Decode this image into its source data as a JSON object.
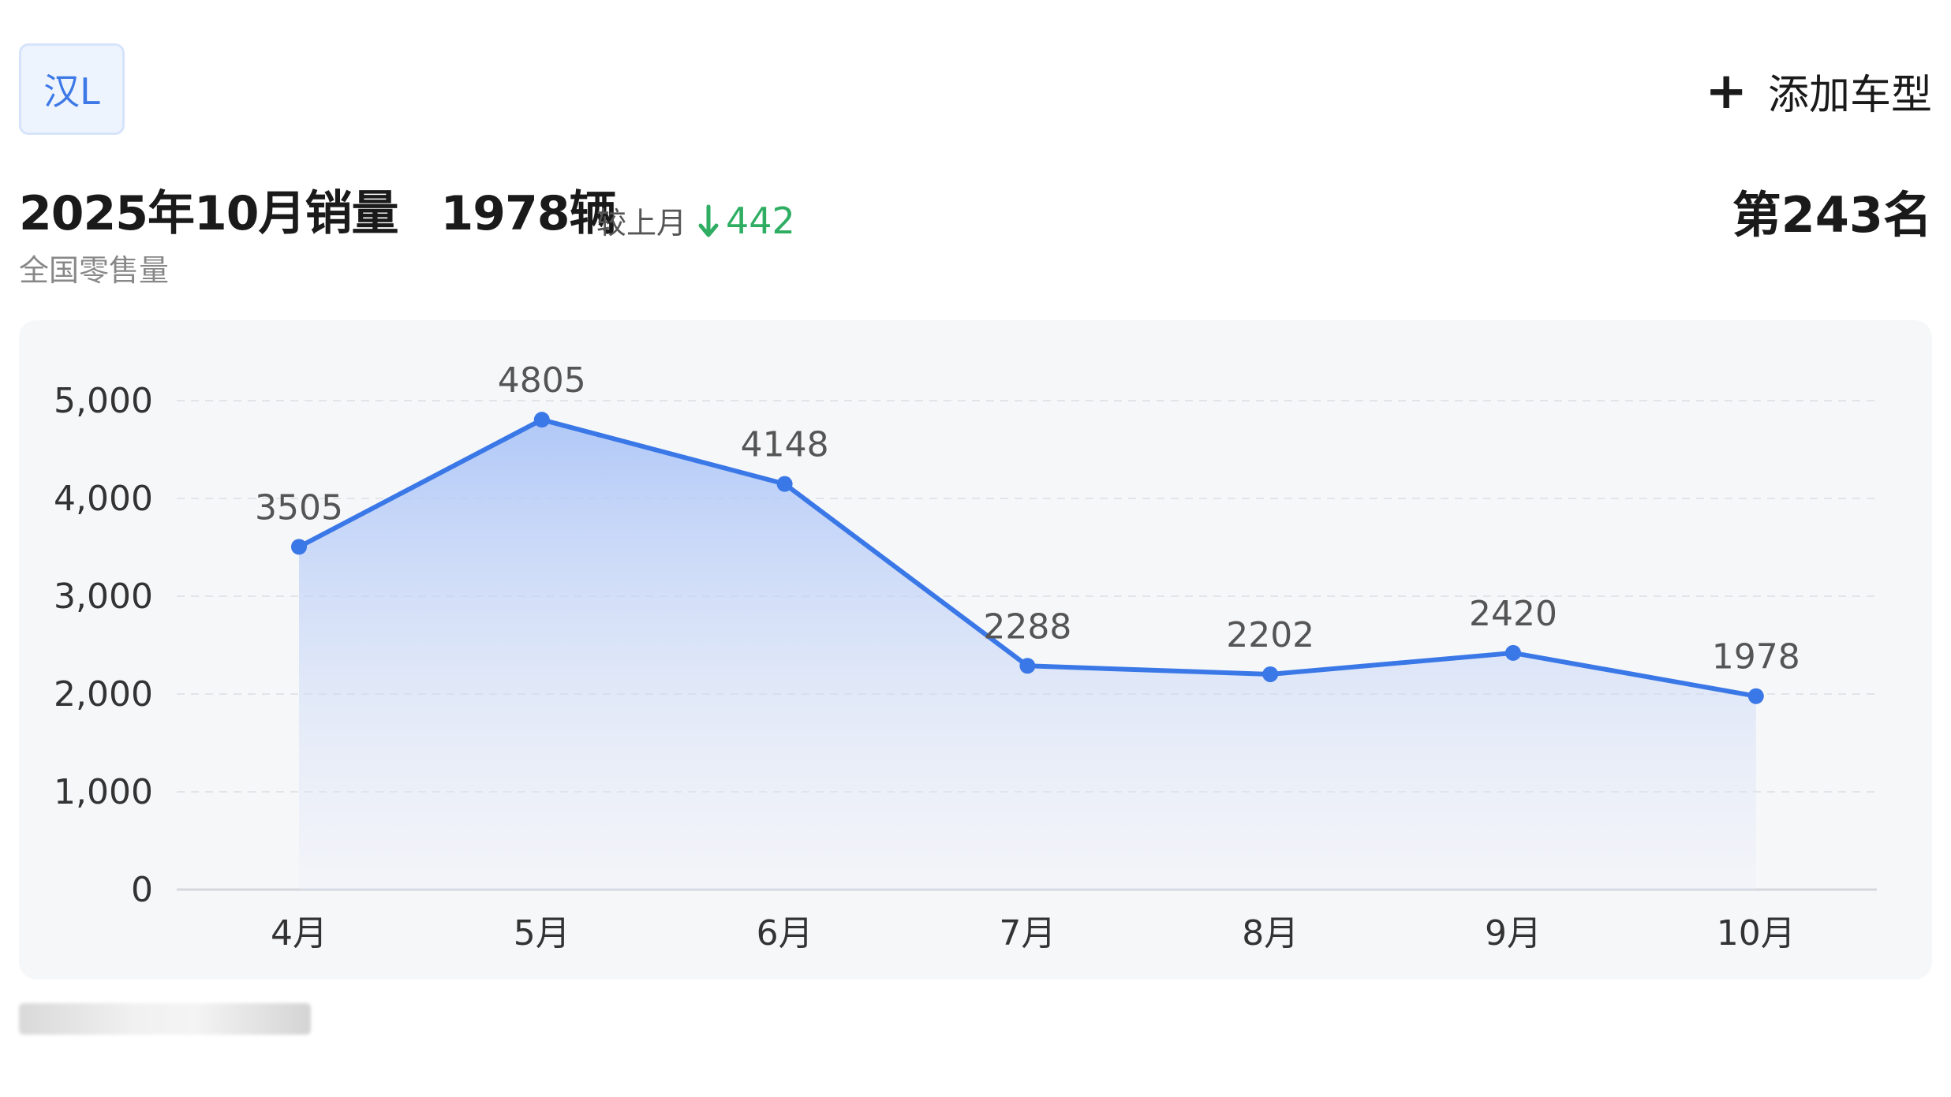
{
  "model_chip": {
    "label": "汉L"
  },
  "add_model": {
    "icon": "plus-icon",
    "label": "添加车型"
  },
  "headline": {
    "title": "2025年10月销量",
    "units": "1978辆",
    "compare_label": "较上月",
    "compare_icon": "arrow-down-icon",
    "compare_value": "442",
    "subtitle": "全国零售量",
    "rank": "第243名"
  },
  "colors": {
    "accent": "#3b78e7",
    "down": "#2fae63",
    "card_bg": "#f6f7f9"
  },
  "chart_data": {
    "type": "area",
    "title": "",
    "xlabel": "",
    "ylabel": "",
    "categories": [
      "4月",
      "5月",
      "6月",
      "7月",
      "8月",
      "9月",
      "10月"
    ],
    "series": [
      {
        "values": [
          3505,
          4805,
          4148,
          2288,
          2202,
          2420,
          1978
        ]
      }
    ],
    "data_labels": [
      "3505",
      "4805",
      "4148",
      "2288",
      "2202",
      "2420",
      "1978"
    ],
    "y_ticks": [
      0,
      1000,
      2000,
      3000,
      4000,
      5000
    ],
    "y_tick_labels": [
      "0",
      "1,000",
      "2,000",
      "3,000",
      "4,000",
      "5,000"
    ],
    "ylim": [
      0,
      5000
    ],
    "grid": true,
    "legend": false
  }
}
